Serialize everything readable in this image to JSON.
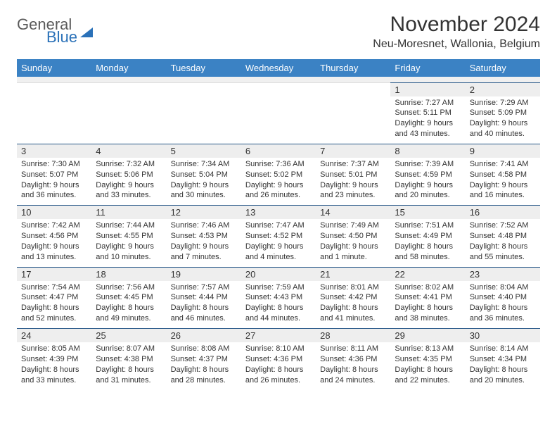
{
  "brand": {
    "general": "General",
    "blue": "Blue"
  },
  "header": {
    "month_title": "November 2024",
    "location": "Neu-Moresnet, Wallonia, Belgium"
  },
  "colors": {
    "header_bg": "#3b82c4",
    "header_text": "#ffffff",
    "daynum_bg": "#eeeeee",
    "rule": "#2a5a8a",
    "brand_blue": "#2a71b8"
  },
  "columns": [
    "Sunday",
    "Monday",
    "Tuesday",
    "Wednesday",
    "Thursday",
    "Friday",
    "Saturday"
  ],
  "weeks": [
    [
      null,
      null,
      null,
      null,
      null,
      {
        "n": "1",
        "sr": "7:27 AM",
        "ss": "5:11 PM",
        "dl": "9 hours and 43 minutes."
      },
      {
        "n": "2",
        "sr": "7:29 AM",
        "ss": "5:09 PM",
        "dl": "9 hours and 40 minutes."
      }
    ],
    [
      {
        "n": "3",
        "sr": "7:30 AM",
        "ss": "5:07 PM",
        "dl": "9 hours and 36 minutes."
      },
      {
        "n": "4",
        "sr": "7:32 AM",
        "ss": "5:06 PM",
        "dl": "9 hours and 33 minutes."
      },
      {
        "n": "5",
        "sr": "7:34 AM",
        "ss": "5:04 PM",
        "dl": "9 hours and 30 minutes."
      },
      {
        "n": "6",
        "sr": "7:36 AM",
        "ss": "5:02 PM",
        "dl": "9 hours and 26 minutes."
      },
      {
        "n": "7",
        "sr": "7:37 AM",
        "ss": "5:01 PM",
        "dl": "9 hours and 23 minutes."
      },
      {
        "n": "8",
        "sr": "7:39 AM",
        "ss": "4:59 PM",
        "dl": "9 hours and 20 minutes."
      },
      {
        "n": "9",
        "sr": "7:41 AM",
        "ss": "4:58 PM",
        "dl": "9 hours and 16 minutes."
      }
    ],
    [
      {
        "n": "10",
        "sr": "7:42 AM",
        "ss": "4:56 PM",
        "dl": "9 hours and 13 minutes."
      },
      {
        "n": "11",
        "sr": "7:44 AM",
        "ss": "4:55 PM",
        "dl": "9 hours and 10 minutes."
      },
      {
        "n": "12",
        "sr": "7:46 AM",
        "ss": "4:53 PM",
        "dl": "9 hours and 7 minutes."
      },
      {
        "n": "13",
        "sr": "7:47 AM",
        "ss": "4:52 PM",
        "dl": "9 hours and 4 minutes."
      },
      {
        "n": "14",
        "sr": "7:49 AM",
        "ss": "4:50 PM",
        "dl": "9 hours and 1 minute."
      },
      {
        "n": "15",
        "sr": "7:51 AM",
        "ss": "4:49 PM",
        "dl": "8 hours and 58 minutes."
      },
      {
        "n": "16",
        "sr": "7:52 AM",
        "ss": "4:48 PM",
        "dl": "8 hours and 55 minutes."
      }
    ],
    [
      {
        "n": "17",
        "sr": "7:54 AM",
        "ss": "4:47 PM",
        "dl": "8 hours and 52 minutes."
      },
      {
        "n": "18",
        "sr": "7:56 AM",
        "ss": "4:45 PM",
        "dl": "8 hours and 49 minutes."
      },
      {
        "n": "19",
        "sr": "7:57 AM",
        "ss": "4:44 PM",
        "dl": "8 hours and 46 minutes."
      },
      {
        "n": "20",
        "sr": "7:59 AM",
        "ss": "4:43 PM",
        "dl": "8 hours and 44 minutes."
      },
      {
        "n": "21",
        "sr": "8:01 AM",
        "ss": "4:42 PM",
        "dl": "8 hours and 41 minutes."
      },
      {
        "n": "22",
        "sr": "8:02 AM",
        "ss": "4:41 PM",
        "dl": "8 hours and 38 minutes."
      },
      {
        "n": "23",
        "sr": "8:04 AM",
        "ss": "4:40 PM",
        "dl": "8 hours and 36 minutes."
      }
    ],
    [
      {
        "n": "24",
        "sr": "8:05 AM",
        "ss": "4:39 PM",
        "dl": "8 hours and 33 minutes."
      },
      {
        "n": "25",
        "sr": "8:07 AM",
        "ss": "4:38 PM",
        "dl": "8 hours and 31 minutes."
      },
      {
        "n": "26",
        "sr": "8:08 AM",
        "ss": "4:37 PM",
        "dl": "8 hours and 28 minutes."
      },
      {
        "n": "27",
        "sr": "8:10 AM",
        "ss": "4:36 PM",
        "dl": "8 hours and 26 minutes."
      },
      {
        "n": "28",
        "sr": "8:11 AM",
        "ss": "4:36 PM",
        "dl": "8 hours and 24 minutes."
      },
      {
        "n": "29",
        "sr": "8:13 AM",
        "ss": "4:35 PM",
        "dl": "8 hours and 22 minutes."
      },
      {
        "n": "30",
        "sr": "8:14 AM",
        "ss": "4:34 PM",
        "dl": "8 hours and 20 minutes."
      }
    ]
  ],
  "labels": {
    "sunrise": "Sunrise:",
    "sunset": "Sunset:",
    "daylight": "Daylight:"
  }
}
